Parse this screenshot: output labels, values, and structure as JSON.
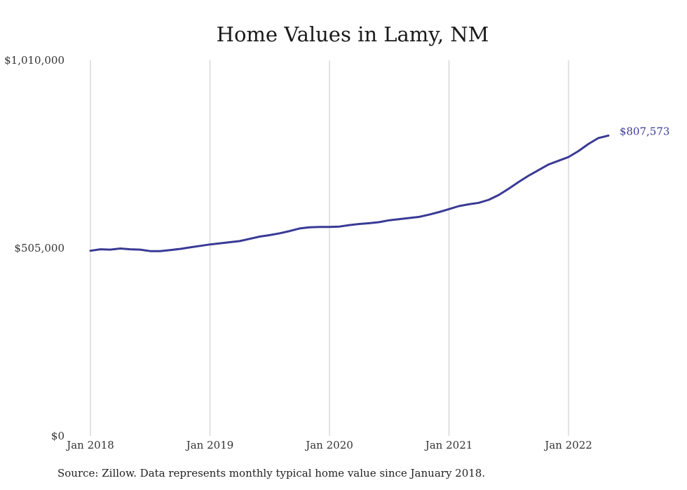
{
  "chart_data": {
    "type": "line",
    "title": "Home Values in Lamy, NM",
    "xlabel": "",
    "ylabel": "",
    "x_ticks": [
      "Jan 2018",
      "Jan 2019",
      "Jan 2020",
      "Jan 2021",
      "Jan 2022"
    ],
    "y_ticks": [
      "$0",
      "$505,000",
      "$1,010,000"
    ],
    "ylim": [
      0,
      1010000
    ],
    "grid": "vertical",
    "line_color": "#3a3a96",
    "series": [
      {
        "x": [
          "2018-01",
          "2018-02",
          "2018-03",
          "2018-04",
          "2018-05",
          "2018-06",
          "2018-07",
          "2018-08",
          "2018-09",
          "2018-10",
          "2018-11",
          "2018-12",
          "2019-01",
          "2019-02",
          "2019-03",
          "2019-04",
          "2019-05",
          "2019-06",
          "2019-07",
          "2019-08",
          "2019-09",
          "2019-10",
          "2019-11",
          "2019-12",
          "2020-01",
          "2020-02",
          "2020-03",
          "2020-04",
          "2020-05",
          "2020-06",
          "2020-07",
          "2020-08",
          "2020-09",
          "2020-10",
          "2020-11",
          "2020-12",
          "2021-01",
          "2021-02",
          "2021-03",
          "2021-04",
          "2021-05",
          "2021-06",
          "2021-07",
          "2021-08",
          "2021-09",
          "2021-10",
          "2021-11",
          "2021-12",
          "2022-01",
          "2022-02",
          "2022-03",
          "2022-04",
          "2022-05"
        ],
        "values": [
          498000,
          502000,
          501000,
          504000,
          502000,
          501000,
          497000,
          497000,
          500000,
          503000,
          507000,
          511000,
          515000,
          518000,
          521000,
          524000,
          530000,
          536000,
          540000,
          545000,
          551000,
          558000,
          561000,
          562000,
          562000,
          563000,
          567000,
          570000,
          572000,
          575000,
          580000,
          583000,
          586000,
          589000,
          595000,
          602000,
          610000,
          618000,
          623000,
          627000,
          635000,
          648000,
          665000,
          683000,
          700000,
          715000,
          730000,
          740000,
          750000,
          766000,
          785000,
          801000,
          807573
        ]
      }
    ],
    "end_label": "$807,573"
  },
  "source": "Source: Zillow. Data represents monthly typical home value since January 2018."
}
